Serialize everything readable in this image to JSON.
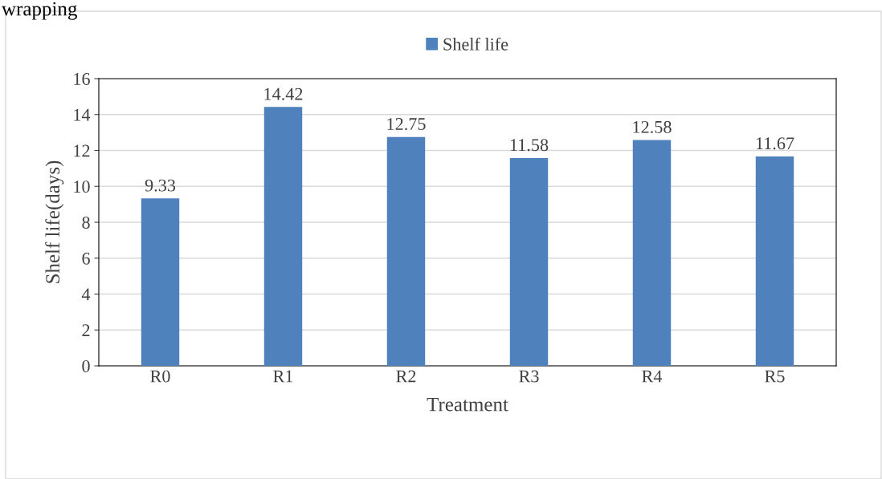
{
  "chart_data": {
    "type": "bar",
    "xlabel": "Treatment",
    "ylabel": "Shelf life(days)",
    "annotations": [
      "wrapping"
    ],
    "categories": [
      "R0",
      "R1",
      "R2",
      "R3",
      "R4",
      "R5"
    ],
    "series": [
      {
        "name": "Shelf life",
        "color": "#4f81bd",
        "values": [
          9.33,
          14.42,
          12.75,
          11.58,
          12.58,
          11.67
        ]
      }
    ],
    "ylim": [
      0,
      16
    ],
    "yticks": [
      0,
      2,
      4,
      6,
      8,
      10,
      12,
      14,
      16
    ],
    "grid": "y",
    "legend": "top",
    "data_labels": true
  }
}
